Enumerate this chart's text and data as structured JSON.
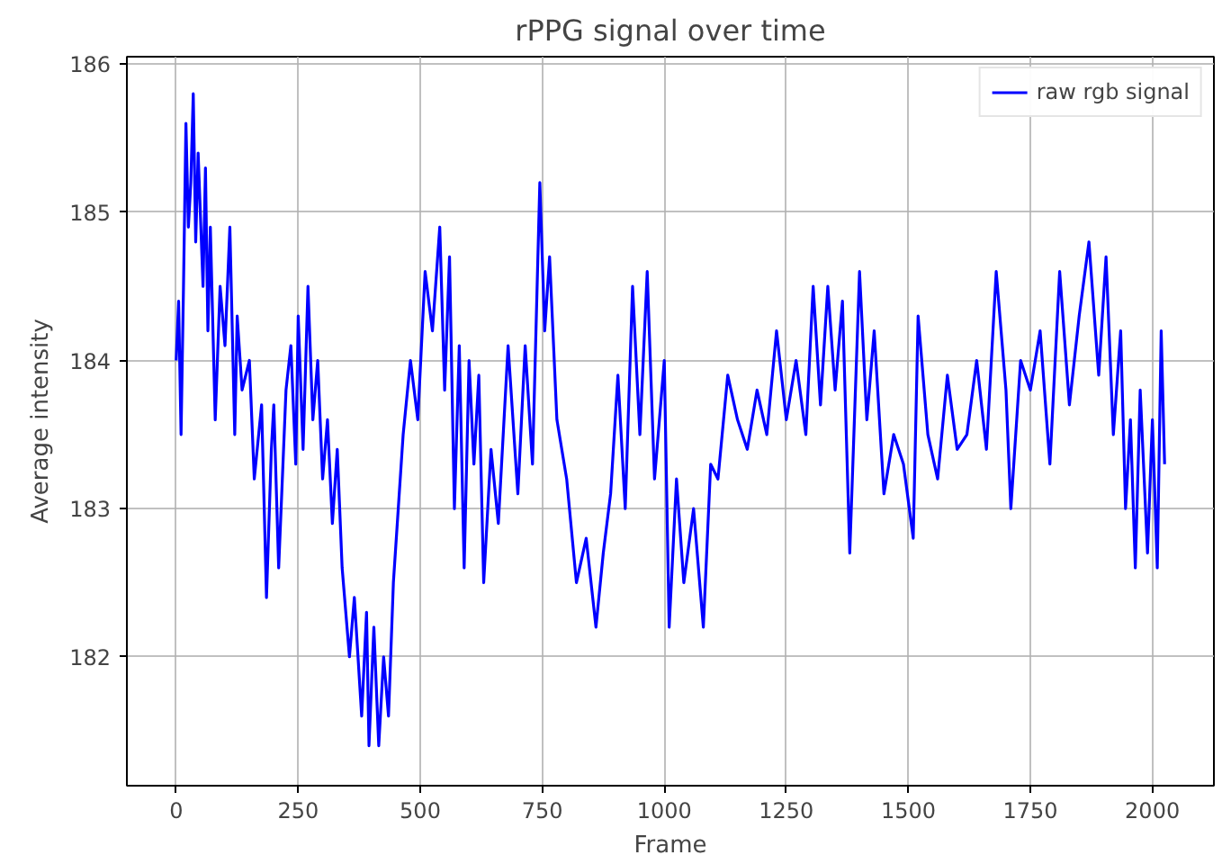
{
  "chart_data": {
    "type": "line",
    "title": "rPPG signal over time",
    "xlabel": "Frame",
    "ylabel": "Average intensity",
    "xlim": [
      -101,
      2126
    ],
    "ylim": [
      181.13,
      186.05
    ],
    "xticks": [
      0,
      250,
      500,
      750,
      1000,
      1250,
      1500,
      1750,
      2000
    ],
    "yticks": [
      182,
      183,
      184,
      185,
      186
    ],
    "grid": true,
    "legend": "top right",
    "line_style": "solid",
    "marker": "none",
    "series": [
      {
        "name": "raw rgb signal",
        "color": "#0000ff",
        "x": [
          0,
          5,
          10,
          15,
          20,
          25,
          30,
          35,
          40,
          45,
          55,
          60,
          65,
          70,
          80,
          90,
          100,
          110,
          120,
          125,
          135,
          150,
          160,
          175,
          185,
          195,
          200,
          210,
          225,
          235,
          245,
          250,
          260,
          270,
          280,
          290,
          300,
          310,
          320,
          330,
          340,
          355,
          365,
          380,
          390,
          395,
          405,
          415,
          425,
          435,
          445,
          455,
          465,
          480,
          495,
          510,
          525,
          540,
          550,
          560,
          570,
          580,
          590,
          600,
          610,
          620,
          630,
          645,
          660,
          680,
          700,
          715,
          730,
          745,
          755,
          765,
          780,
          800,
          820,
          840,
          860,
          875,
          890,
          905,
          920,
          935,
          950,
          965,
          980,
          1000,
          1010,
          1025,
          1040,
          1060,
          1080,
          1095,
          1110,
          1130,
          1150,
          1170,
          1190,
          1210,
          1230,
          1250,
          1270,
          1290,
          1305,
          1320,
          1335,
          1350,
          1365,
          1380,
          1400,
          1415,
          1430,
          1450,
          1470,
          1490,
          1510,
          1520,
          1540,
          1560,
          1580,
          1600,
          1620,
          1640,
          1660,
          1680,
          1700,
          1710,
          1730,
          1750,
          1770,
          1790,
          1810,
          1830,
          1850,
          1870,
          1890,
          1905,
          1920,
          1935,
          1945,
          1955,
          1965,
          1975,
          1990,
          2000,
          2010,
          2018,
          2025
        ],
        "values": [
          184.0,
          184.4,
          183.5,
          184.5,
          185.6,
          184.9,
          185.2,
          185.8,
          184.8,
          185.4,
          184.5,
          185.3,
          184.2,
          184.9,
          183.6,
          184.5,
          184.1,
          184.9,
          183.5,
          184.3,
          183.8,
          184.0,
          183.2,
          183.7,
          182.4,
          183.4,
          183.7,
          182.6,
          183.8,
          184.1,
          183.3,
          184.3,
          183.4,
          184.5,
          183.6,
          184.0,
          183.2,
          183.6,
          182.9,
          183.4,
          182.6,
          182.0,
          182.4,
          181.6,
          182.3,
          181.4,
          182.2,
          181.4,
          182.0,
          181.6,
          182.5,
          183.0,
          183.5,
          184.0,
          183.6,
          184.6,
          184.2,
          184.9,
          183.8,
          184.7,
          183.0,
          184.1,
          182.6,
          184.0,
          183.3,
          183.9,
          182.5,
          183.4,
          182.9,
          184.1,
          183.1,
          184.1,
          183.3,
          185.2,
          184.2,
          184.7,
          183.6,
          183.2,
          182.5,
          182.8,
          182.2,
          182.7,
          183.1,
          183.9,
          183.0,
          184.5,
          183.5,
          184.6,
          183.2,
          184.0,
          182.2,
          183.2,
          182.5,
          183.0,
          182.2,
          183.3,
          183.2,
          183.9,
          183.6,
          183.4,
          183.8,
          183.5,
          184.2,
          183.6,
          184.0,
          183.5,
          184.5,
          183.7,
          184.5,
          183.8,
          184.4,
          182.7,
          184.6,
          183.6,
          184.2,
          183.1,
          183.5,
          183.3,
          182.8,
          184.3,
          183.5,
          183.2,
          183.9,
          183.4,
          183.5,
          184.0,
          183.4,
          184.6,
          183.8,
          183.0,
          184.0,
          183.8,
          184.2,
          183.3,
          184.6,
          183.7,
          184.3,
          184.8,
          183.9,
          184.7,
          183.5,
          184.2,
          183.0,
          183.6,
          182.6,
          183.8,
          182.7,
          183.6,
          182.6,
          184.2,
          183.3
        ]
      }
    ]
  }
}
